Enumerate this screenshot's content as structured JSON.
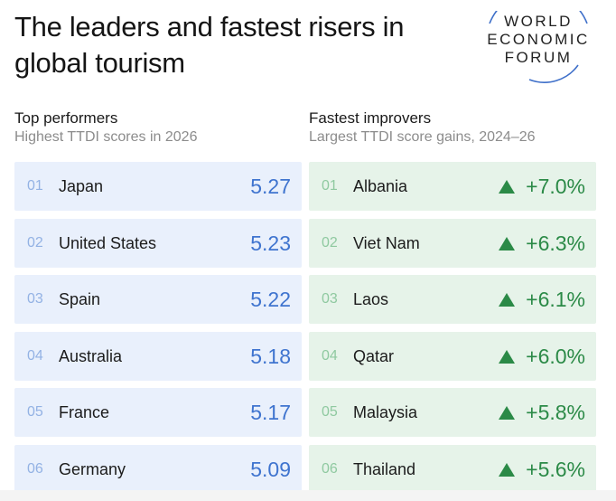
{
  "title": "The leaders and fastest risers in global tourism",
  "logo": {
    "lines": [
      "WORLD",
      "ECONOMIC",
      "FORUM"
    ]
  },
  "colors": {
    "left_row_bg": "#e9f0fc",
    "left_value": "#3f74cf",
    "right_row_bg": "#e6f3e9",
    "right_value": "#2b8a47"
  },
  "top_performers": {
    "heading": "Top performers",
    "subheading": "Highest TTDI scores in 2026",
    "rows": [
      {
        "rank": "01",
        "country": "Japan",
        "score": "5.27"
      },
      {
        "rank": "02",
        "country": "United States",
        "score": "5.23"
      },
      {
        "rank": "03",
        "country": "Spain",
        "score": "5.22"
      },
      {
        "rank": "04",
        "country": "Australia",
        "score": "5.18"
      },
      {
        "rank": "05",
        "country": "France",
        "score": "5.17"
      },
      {
        "rank": "06",
        "country": "Germany",
        "score": "5.09"
      }
    ]
  },
  "fastest_improvers": {
    "heading": "Fastest improvers",
    "subheading": "Largest TTDI score gains, 2024–26",
    "icon": "triangle-up-icon",
    "rows": [
      {
        "rank": "01",
        "country": "Albania",
        "gain": "+7.0%"
      },
      {
        "rank": "02",
        "country": "Viet Nam",
        "gain": "+6.3%"
      },
      {
        "rank": "03",
        "country": "Laos",
        "gain": "+6.1%"
      },
      {
        "rank": "04",
        "country": "Qatar",
        "gain": "+6.0%"
      },
      {
        "rank": "05",
        "country": "Malaysia",
        "gain": "+5.8%"
      },
      {
        "rank": "06",
        "country": "Thailand",
        "gain": "+5.6%"
      }
    ]
  }
}
